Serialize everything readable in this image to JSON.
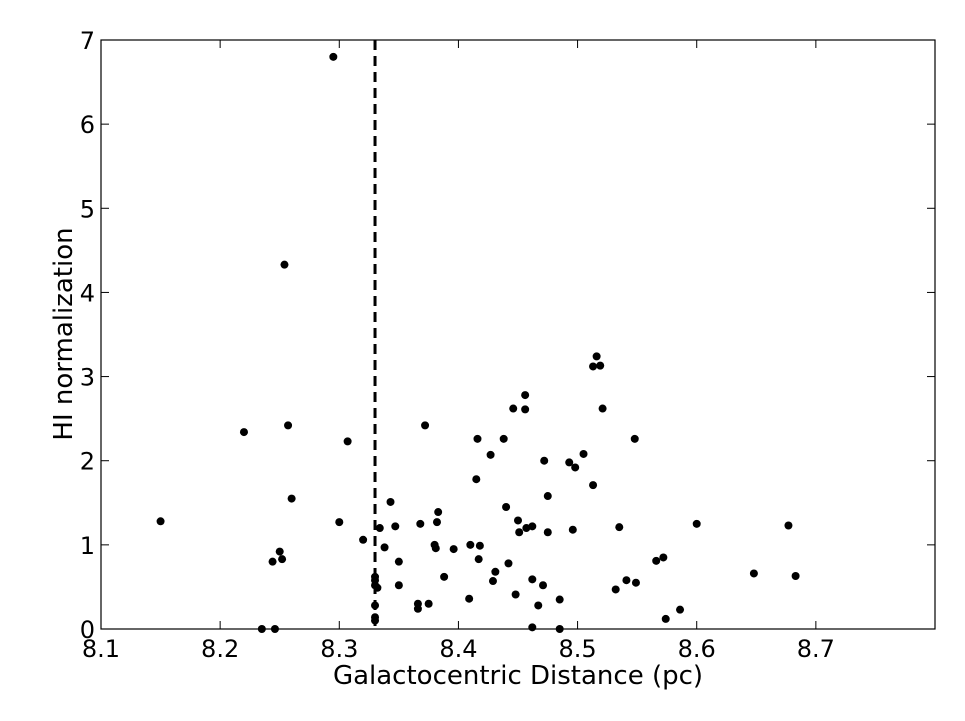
{
  "chart_data": {
    "type": "scatter",
    "title": "",
    "xlabel": "Galactocentric Distance (pc)",
    "ylabel": "HI normalization",
    "xlim": [
      8.1,
      8.8
    ],
    "ylim": [
      0,
      7
    ],
    "xticks": [
      "8.1",
      "8.2",
      "8.3",
      "8.4",
      "8.5",
      "8.6",
      "8.7"
    ],
    "yticks": [
      "0",
      "1",
      "2",
      "3",
      "4",
      "5",
      "6",
      "7"
    ],
    "grid": false,
    "marker_color": "#000000",
    "reference_line": {
      "x": 8.33,
      "style": "dashed",
      "color": "#000000"
    },
    "points": [
      [
        8.15,
        1.28
      ],
      [
        8.22,
        2.34
      ],
      [
        8.235,
        0.0
      ],
      [
        8.244,
        0.8
      ],
      [
        8.246,
        0.0
      ],
      [
        8.25,
        0.92
      ],
      [
        8.252,
        0.83
      ],
      [
        8.254,
        4.33
      ],
      [
        8.257,
        2.42
      ],
      [
        8.26,
        1.55
      ],
      [
        8.295,
        6.8
      ],
      [
        8.3,
        1.27
      ],
      [
        8.307,
        2.23
      ],
      [
        8.32,
        1.06
      ],
      [
        8.33,
        0.62
      ],
      [
        8.33,
        0.58
      ],
      [
        8.33,
        0.52
      ],
      [
        8.33,
        0.28
      ],
      [
        8.33,
        0.14
      ],
      [
        8.33,
        0.1
      ],
      [
        8.332,
        0.49
      ],
      [
        8.334,
        1.2
      ],
      [
        8.338,
        0.97
      ],
      [
        8.343,
        1.51
      ],
      [
        8.347,
        1.22
      ],
      [
        8.35,
        0.8
      ],
      [
        8.35,
        0.52
      ],
      [
        8.366,
        0.3
      ],
      [
        8.366,
        0.24
      ],
      [
        8.368,
        1.25
      ],
      [
        8.372,
        2.42
      ],
      [
        8.375,
        0.3
      ],
      [
        8.38,
        1.0
      ],
      [
        8.381,
        0.96
      ],
      [
        8.382,
        1.27
      ],
      [
        8.383,
        1.39
      ],
      [
        8.388,
        0.62
      ],
      [
        8.396,
        0.95
      ],
      [
        8.409,
        0.36
      ],
      [
        8.41,
        1.0
      ],
      [
        8.415,
        1.78
      ],
      [
        8.416,
        2.26
      ],
      [
        8.417,
        0.83
      ],
      [
        8.418,
        0.99
      ],
      [
        8.427,
        2.07
      ],
      [
        8.429,
        0.57
      ],
      [
        8.431,
        0.68
      ],
      [
        8.438,
        2.26
      ],
      [
        8.44,
        1.45
      ],
      [
        8.442,
        0.78
      ],
      [
        8.446,
        2.62
      ],
      [
        8.448,
        0.41
      ],
      [
        8.45,
        1.29
      ],
      [
        8.451,
        1.15
      ],
      [
        8.456,
        2.61
      ],
      [
        8.456,
        2.78
      ],
      [
        8.457,
        1.2
      ],
      [
        8.462,
        0.02
      ],
      [
        8.462,
        0.59
      ],
      [
        8.462,
        1.22
      ],
      [
        8.467,
        0.28
      ],
      [
        8.471,
        0.52
      ],
      [
        8.472,
        2.0
      ],
      [
        8.475,
        1.58
      ],
      [
        8.475,
        1.15
      ],
      [
        8.485,
        0.35
      ],
      [
        8.485,
        0.0
      ],
      [
        8.493,
        1.98
      ],
      [
        8.496,
        1.18
      ],
      [
        8.498,
        1.92
      ],
      [
        8.505,
        2.08
      ],
      [
        8.513,
        1.71
      ],
      [
        8.513,
        3.12
      ],
      [
        8.516,
        3.24
      ],
      [
        8.519,
        3.13
      ],
      [
        8.521,
        2.62
      ],
      [
        8.532,
        0.47
      ],
      [
        8.535,
        1.21
      ],
      [
        8.541,
        0.58
      ],
      [
        8.548,
        2.26
      ],
      [
        8.549,
        0.55
      ],
      [
        8.566,
        0.81
      ],
      [
        8.572,
        0.85
      ],
      [
        8.574,
        0.12
      ],
      [
        8.586,
        0.23
      ],
      [
        8.6,
        1.25
      ],
      [
        8.648,
        0.66
      ],
      [
        8.677,
        1.23
      ],
      [
        8.683,
        0.63
      ]
    ]
  }
}
